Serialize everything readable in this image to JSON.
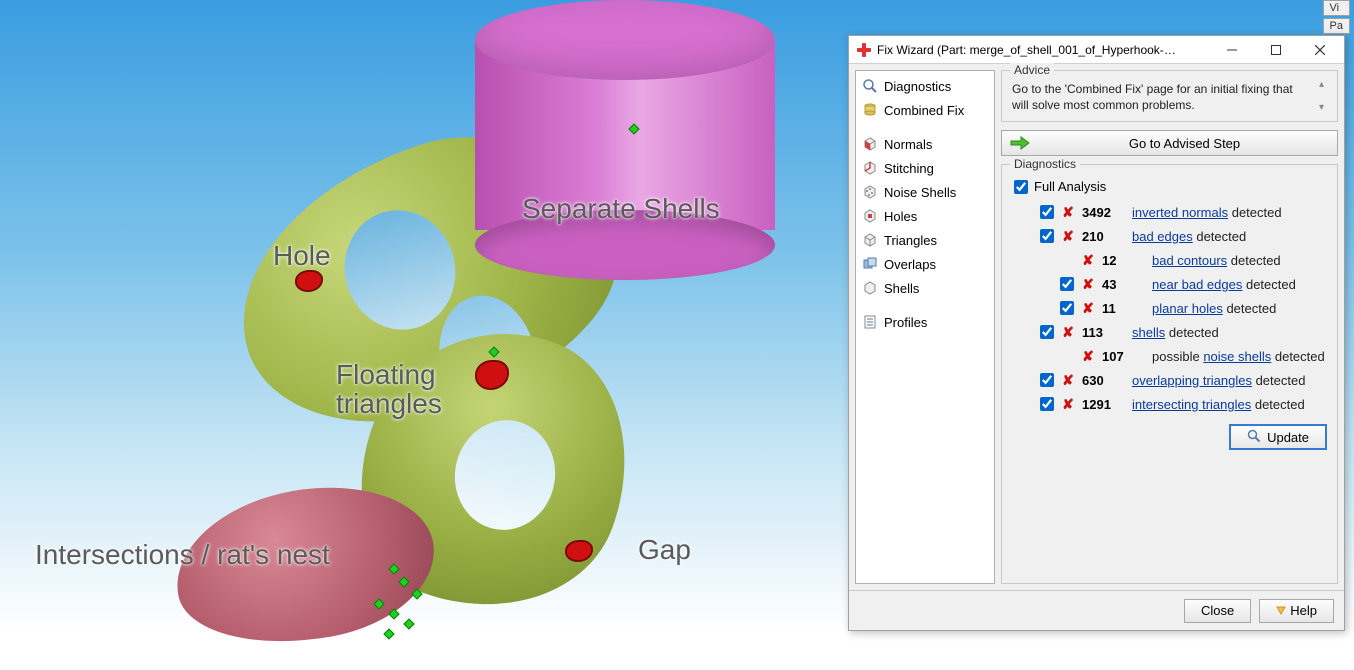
{
  "viewport": {
    "bg_gradient": [
      "#3a9de0",
      "#7cc2ea",
      "#c4e4f4",
      "#ffffff"
    ],
    "annotations": {
      "separate_shells": "Separate Shells",
      "hole": "Hole",
      "floating_triangles": "Floating\ntriangles",
      "intersections": "Intersections / rat's nest",
      "gap": "Gap"
    },
    "top_tabs": {
      "vi": "Vi",
      "pa": "Pa"
    }
  },
  "dialog": {
    "title": "Fix Wizard (Part: merge_of_shell_001_of_Hyperhook-t...",
    "nav": {
      "diagnostics": "Diagnostics",
      "combined_fix": "Combined Fix",
      "normals": "Normals",
      "stitching": "Stitching",
      "noise_shells": "Noise Shells",
      "holes": "Holes",
      "triangles": "Triangles",
      "overlaps": "Overlaps",
      "shells": "Shells",
      "profiles": "Profiles"
    },
    "advice": {
      "group_title": "Advice",
      "text": "Go to the 'Combined Fix' page for an initial fixing that will solve most common problems."
    },
    "advised_button": "Go to Advised Step",
    "diagnostics": {
      "group_title": "Diagnostics",
      "full_analysis_label": "Full Analysis",
      "full_analysis_checked": true,
      "rows": [
        {
          "checked": true,
          "count": "3492",
          "link": "inverted normals",
          "suffix": " detected",
          "indent": 0
        },
        {
          "checked": true,
          "count": "210",
          "link": "bad edges",
          "suffix": " detected",
          "indent": 0
        },
        {
          "checked": null,
          "count": "12",
          "link": "bad contours",
          "suffix": " detected",
          "indent": 1
        },
        {
          "checked": true,
          "count": "43",
          "link": "near bad edges",
          "suffix": " detected",
          "indent": 1
        },
        {
          "checked": true,
          "count": "11",
          "link": "planar holes",
          "suffix": " detected",
          "indent": 1
        },
        {
          "checked": true,
          "count": "113",
          "link": "shells",
          "suffix": " detected",
          "indent": 0
        },
        {
          "checked": null,
          "count": "107",
          "prefix": "possible ",
          "link": "noise shells",
          "suffix": " detected",
          "indent": 1
        },
        {
          "checked": true,
          "count": "630",
          "link": "overlapping triangles",
          "suffix": " detected",
          "indent": 0
        },
        {
          "checked": true,
          "count": "1291",
          "link": "intersecting triangles",
          "suffix": " detected",
          "indent": 0
        }
      ],
      "update_button": "Update"
    },
    "footer": {
      "close": "Close",
      "help": "Help"
    }
  },
  "style": {
    "link_color": "#0a3b9a",
    "error_x_color": "#d01010",
    "dialog_bg": "#f0f0f0",
    "dialog_border": "#a0a0a0",
    "button_border_active": "#3a78d6"
  }
}
